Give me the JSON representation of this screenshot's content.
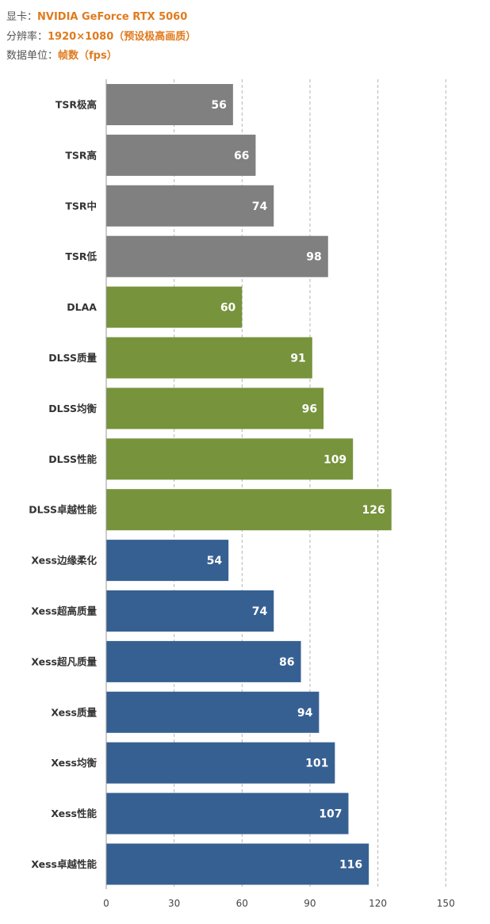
{
  "meta": {
    "gpu_label": "显卡：",
    "gpu_value": "NVIDIA GeForce RTX 5060",
    "res_label": "分辨率：",
    "res_value": "1920×1080（预设极高画质）",
    "unit_label": "数据单位：",
    "unit_value": "帧数（fps）"
  },
  "colors": {
    "gray": "#808080",
    "green": "#77933c",
    "blue": "#376092",
    "gpu_value": "#e07b1f"
  },
  "chart_data": {
    "type": "bar",
    "orientation": "horizontal",
    "categories": [
      "TSR极高",
      "TSR高",
      "TSR中",
      "TSR低",
      "DLAA",
      "DLSS质量",
      "DLSS均衡",
      "DLSS性能",
      "DLSS卓越性能",
      "Xess边缘柔化",
      "Xess超高质量",
      "Xess超凡质量",
      "Xess质量",
      "Xess均衡",
      "Xess性能",
      "Xess卓越性能"
    ],
    "values": [
      56,
      66,
      74,
      98,
      60,
      91,
      96,
      109,
      126,
      54,
      74,
      86,
      94,
      101,
      107,
      116
    ],
    "bar_colors": [
      "gray",
      "gray",
      "gray",
      "gray",
      "green",
      "green",
      "green",
      "green",
      "green",
      "blue",
      "blue",
      "blue",
      "blue",
      "blue",
      "blue",
      "blue"
    ],
    "xlim": [
      0,
      150
    ],
    "xticks": [
      0,
      30,
      60,
      90,
      120,
      150
    ],
    "grid": "vertical-dashed",
    "data_labels": true
  }
}
